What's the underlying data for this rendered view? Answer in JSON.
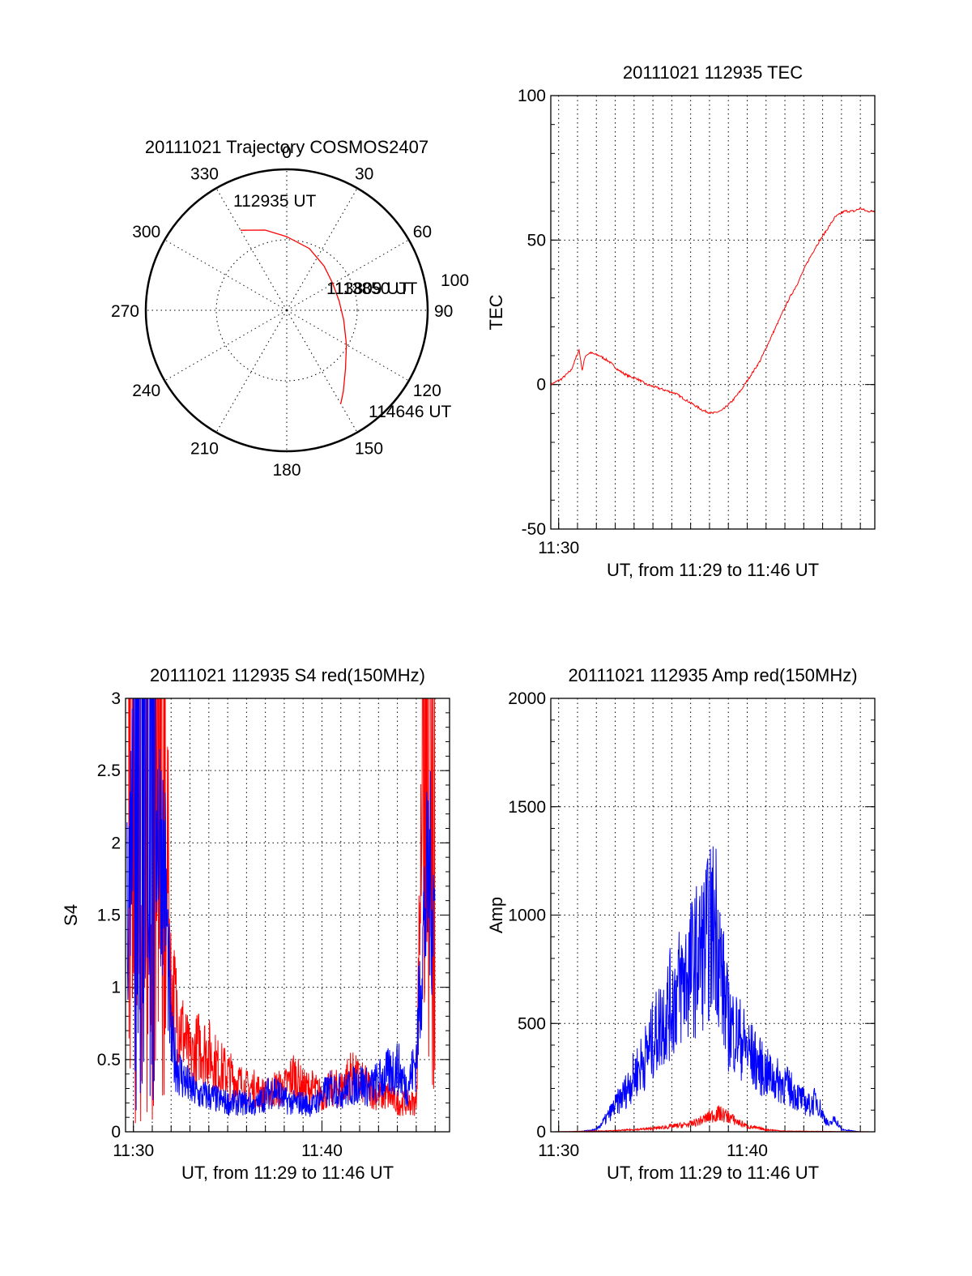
{
  "colors": {
    "red": "#ff0000",
    "blue": "#0000ff",
    "axis": "#000000"
  },
  "chart_data": [
    {
      "id": "trajectory",
      "type": "polar",
      "title": "20111021 Trajectory COSMOS2407",
      "angle_labels": [
        "0",
        "30",
        "60",
        "90",
        "120",
        "150",
        "180",
        "210",
        "240",
        "270",
        "300",
        "330"
      ],
      "radius_label": "100",
      "grid": true,
      "series": [
        {
          "color": "#ff0000",
          "points": [
            {
              "az": 330,
              "el": 31
            },
            {
              "az": 345,
              "el": 37
            },
            {
              "az": 0,
              "el": 43
            },
            {
              "az": 20,
              "el": 48
            },
            {
              "az": 40,
              "el": 53
            },
            {
              "az": 60,
              "el": 56
            },
            {
              "az": 80,
              "el": 56
            },
            {
              "az": 100,
              "el": 53
            },
            {
              "az": 120,
              "el": 46
            },
            {
              "az": 135,
              "el": 37
            },
            {
              "az": 145,
              "el": 27
            },
            {
              "az": 150,
              "el": 21
            }
          ]
        }
      ],
      "annotations": [
        "112935 UT",
        "113809 UT",
        "113850 UT",
        "114646 UT"
      ]
    },
    {
      "id": "tec",
      "type": "line",
      "title": "20111021 112935 TEC",
      "xlabel": "UT, from 11:29 to 11:46 UT",
      "ylabel": "TEC",
      "x_tick_labels": [
        "11:30"
      ],
      "y_ticks": [
        "-50",
        "0",
        "50",
        "100"
      ],
      "ylim": [
        -50,
        100
      ],
      "xlim": [
        "11:29:35",
        "11:46:46"
      ],
      "grid": true,
      "series": [
        {
          "color": "#ff0000",
          "x": [
            "11:29:35",
            "11:30:10",
            "11:30:40",
            "11:31:05",
            "11:31:15",
            "11:31:25",
            "11:31:40",
            "11:32:10",
            "11:32:40",
            "11:33:10",
            "11:33:40",
            "11:34:10",
            "11:34:40",
            "11:35:10",
            "11:35:40",
            "11:36:10",
            "11:36:40",
            "11:37:10",
            "11:37:40",
            "11:38:10",
            "11:38:40",
            "11:39:10",
            "11:39:40",
            "11:40:10",
            "11:40:40",
            "11:41:10",
            "11:41:40",
            "11:42:10",
            "11:42:40",
            "11:43:10",
            "11:43:40",
            "11:44:10",
            "11:44:40",
            "11:45:10",
            "11:45:40",
            "11:46:00",
            "11:46:20",
            "11:46:46"
          ],
          "y": [
            0,
            2,
            5,
            12,
            5,
            10,
            11,
            10,
            8,
            5,
            3,
            2,
            0,
            -1,
            -2,
            -3,
            -5,
            -7,
            -9,
            -10,
            -9,
            -6,
            -2,
            3,
            8,
            15,
            22,
            29,
            35,
            42,
            48,
            53,
            58,
            60,
            60,
            61,
            60,
            60
          ]
        }
      ]
    },
    {
      "id": "s4",
      "type": "line",
      "title": "20111021 112935 S4 red(150MHz)",
      "xlabel": "UT, from 11:29 to 11:46 UT",
      "ylabel": "S4",
      "x_tick_labels": [
        "11:30",
        "11:40"
      ],
      "y_ticks": [
        "0",
        "0.5",
        "1",
        "1.5",
        "2",
        "2.5",
        "3"
      ],
      "ylim": [
        0,
        3
      ],
      "xlim": [
        "11:29:35",
        "11:46:46"
      ],
      "grid": true,
      "series": [
        {
          "color": "#ff0000",
          "x": [
            "11:29:40",
            "11:30:00",
            "11:30:30",
            "11:31:00",
            "11:31:40",
            "11:32:00",
            "11:32:30",
            "11:33:00",
            "11:33:30",
            "11:34:00",
            "11:34:30",
            "11:35:00",
            "11:35:30",
            "11:36:00",
            "11:36:30",
            "11:37:00",
            "11:37:30",
            "11:38:00",
            "11:38:30",
            "11:39:00",
            "11:39:30",
            "11:40:00",
            "11:40:30",
            "11:41:00",
            "11:41:30",
            "11:42:00",
            "11:42:30",
            "11:43:00",
            "11:43:30",
            "11:44:00",
            "11:44:30",
            "11:45:00",
            "11:45:20",
            "11:45:40",
            "11:46:00"
          ],
          "y": [
            2.5,
            3,
            3,
            3,
            2.8,
            1.0,
            0.75,
            0.5,
            0.6,
            0.55,
            0.45,
            0.4,
            0.35,
            0.3,
            0.3,
            0.25,
            0.3,
            0.3,
            0.4,
            0.3,
            0.3,
            0.25,
            0.3,
            0.3,
            0.4,
            0.35,
            0.3,
            0.25,
            0.25,
            0.2,
            0.2,
            0.2,
            2.5,
            3,
            3
          ]
        },
        {
          "color": "#0000ff",
          "x": [
            "11:29:40",
            "11:30:00",
            "11:30:30",
            "11:31:00",
            "11:31:40",
            "11:32:00",
            "11:32:30",
            "11:33:00",
            "11:33:30",
            "11:34:00",
            "11:34:30",
            "11:35:00",
            "11:35:30",
            "11:36:00",
            "11:36:30",
            "11:37:00",
            "11:37:30",
            "11:38:00",
            "11:38:30",
            "11:39:00",
            "11:39:30",
            "11:40:00",
            "11:40:30",
            "11:41:00",
            "11:41:30",
            "11:42:00",
            "11:42:30",
            "11:43:00",
            "11:43:30",
            "11:44:00",
            "11:44:30",
            "11:45:00",
            "11:45:20",
            "11:45:40",
            "11:46:00"
          ],
          "y": [
            1.5,
            2.5,
            3,
            2.5,
            1.8,
            0.6,
            0.4,
            0.3,
            0.25,
            0.25,
            0.22,
            0.2,
            0.2,
            0.2,
            0.18,
            0.25,
            0.3,
            0.22,
            0.2,
            0.2,
            0.18,
            0.25,
            0.3,
            0.28,
            0.3,
            0.35,
            0.3,
            0.35,
            0.4,
            0.45,
            0.3,
            0.5,
            1.3,
            1.8,
            1.5
          ]
        }
      ]
    },
    {
      "id": "amp",
      "type": "line",
      "title": "20111021 112935 Amp red(150MHz)",
      "xlabel": "UT, from 11:29 to 11:46 UT",
      "ylabel": "Amp",
      "x_tick_labels": [
        "11:30",
        "11:40"
      ],
      "y_ticks": [
        "0",
        "500",
        "1000",
        "1500",
        "2000"
      ],
      "ylim": [
        0,
        2000
      ],
      "xlim": [
        "11:29:35",
        "11:46:46"
      ],
      "grid": true,
      "series": [
        {
          "color": "#0000ff",
          "x": [
            "11:29:40",
            "11:31:00",
            "11:32:00",
            "11:32:30",
            "11:33:00",
            "11:33:30",
            "11:34:00",
            "11:34:30",
            "11:35:00",
            "11:35:30",
            "11:36:00",
            "11:36:30",
            "11:37:00",
            "11:37:30",
            "11:38:00",
            "11:38:20",
            "11:38:40",
            "11:39:00",
            "11:39:30",
            "11:40:00",
            "11:40:30",
            "11:41:00",
            "11:41:30",
            "11:42:00",
            "11:42:30",
            "11:43:00",
            "11:43:20",
            "11:43:40",
            "11:44:00",
            "11:44:20",
            "11:44:40",
            "11:45:00",
            "11:46:00",
            "11:46:46"
          ],
          "y": [
            0,
            0,
            10,
            60,
            120,
            180,
            260,
            330,
            420,
            520,
            600,
            680,
            750,
            820,
            900,
            980,
            700,
            500,
            450,
            380,
            320,
            270,
            240,
            220,
            180,
            140,
            120,
            150,
            80,
            30,
            60,
            10,
            0,
            0
          ]
        },
        {
          "color": "#ff0000",
          "x": [
            "11:29:40",
            "11:33:00",
            "11:34:00",
            "11:35:00",
            "11:36:00",
            "11:37:00",
            "11:37:30",
            "11:38:00",
            "11:38:30",
            "11:39:00",
            "11:39:30",
            "11:40:00",
            "11:41:00",
            "11:42:00",
            "11:46:46"
          ],
          "y": [
            0,
            5,
            10,
            15,
            25,
            35,
            50,
            70,
            85,
            70,
            45,
            25,
            10,
            3,
            0
          ]
        }
      ]
    }
  ]
}
